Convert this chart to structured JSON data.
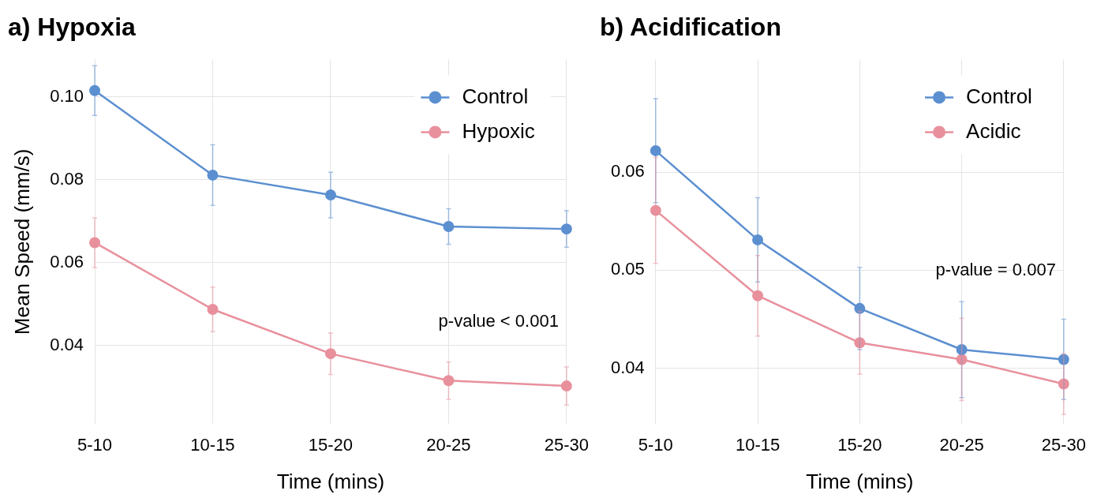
{
  "chart_data": [
    {
      "type": "line",
      "title": "a) Hypoxia",
      "xlabel": "Time (mins)",
      "ylabel": "Mean Speed (mm/s)",
      "categories": [
        "5-10",
        "10-15",
        "15-20",
        "20-25",
        "25-30"
      ],
      "series": [
        {
          "name": "Control",
          "color": "#5b8fd0",
          "values": [
            0.1015,
            0.0811,
            0.0763,
            0.0687,
            0.0681
          ],
          "errors": [
            0.006,
            0.0073,
            0.0055,
            0.0043,
            0.0044
          ]
        },
        {
          "name": "Hypoxic",
          "color": "#e8909c",
          "values": [
            0.0648,
            0.0487,
            0.038,
            0.0315,
            0.0302
          ],
          "errors": [
            0.006,
            0.0054,
            0.005,
            0.0045,
            0.0046
          ]
        }
      ],
      "ylim": [
        0.021,
        0.109
      ],
      "yticks": [
        {
          "value": 0.04,
          "label": "0.04"
        },
        {
          "value": 0.06,
          "label": "0.06"
        },
        {
          "value": 0.08,
          "label": "0.08"
        },
        {
          "value": 0.1,
          "label": "0.10"
        }
      ],
      "grid": true,
      "legend": "top right",
      "marker": "circle",
      "line_style": "solid",
      "annotations": [
        "p-value < 0.001"
      ]
    },
    {
      "type": "line",
      "title": "b) Acidification",
      "xlabel": "Time (mins)",
      "categories": [
        "5-10",
        "10-15",
        "15-20",
        "20-25",
        "25-30"
      ],
      "series": [
        {
          "name": "Control",
          "color": "#5b8fd0",
          "values": [
            0.0622,
            0.0531,
            0.0461,
            0.0419,
            0.0409
          ],
          "errors": [
            0.0053,
            0.0043,
            0.0042,
            0.0049,
            0.0041
          ]
        },
        {
          "name": "Acidic",
          "color": "#e8909c",
          "values": [
            0.0561,
            0.0474,
            0.0426,
            0.0409,
            0.0384
          ],
          "errors": [
            0.0054,
            0.0041,
            0.0032,
            0.0042,
            0.0031
          ]
        }
      ],
      "ylim": [
        0.0343,
        0.0715
      ],
      "yticks": [
        0.04,
        0.05,
        0.06
      ],
      "grid": true,
      "legend": "top right",
      "marker": "circle",
      "line_style": "solid",
      "annotations": [
        "p-value = 0.007"
      ]
    }
  ]
}
